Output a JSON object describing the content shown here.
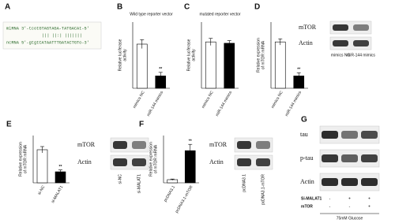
{
  "sequence_panel": {
    "label": "A",
    "lines": [
      "miRNA 3'-tcotGTAGTAGA-TATGACAt-5'",
      "||| ||:| |||||||",
      "ncRNA 5'-gtgtCATAATTTGATACTGTo-3'"
    ]
  },
  "chart_data": [
    {
      "type": "bar",
      "label": "B",
      "title": "Wild type reporter vector",
      "ylabel": [
        "Relative luciferase",
        "activity"
      ],
      "categories": [
        "mimics NC",
        "miR-144 mimics"
      ],
      "values": [
        1.0,
        0.28
      ],
      "errors": [
        0.1,
        0.08
      ],
      "colors": [
        "#ffffff",
        "#000000"
      ],
      "ylim": [
        0,
        1.5
      ],
      "annotations": [
        {
          "category": 1,
          "text": "**"
        }
      ]
    },
    {
      "type": "bar",
      "label": "C",
      "title": "mutated reporter vector",
      "ylabel": [
        "Relative luciferase",
        "activity"
      ],
      "categories": [
        "mimics NC",
        "miR-144 mimics"
      ],
      "values": [
        1.05,
        1.02
      ],
      "errors": [
        0.08,
        0.06
      ],
      "colors": [
        "#ffffff",
        "#000000"
      ],
      "ylim": [
        0,
        1.5
      ]
    },
    {
      "type": "bar",
      "label": "D",
      "ylabel": [
        "Relative expression",
        "of mTOR mRNA"
      ],
      "categories": [
        "mimics NC",
        "miR-144 mimics"
      ],
      "values": [
        1.05,
        0.28
      ],
      "errors": [
        0.07,
        0.07
      ],
      "colors": [
        "#ffffff",
        "#000000"
      ],
      "ylim": [
        0,
        1.5
      ],
      "annotations": [
        {
          "category": 1,
          "text": "**"
        }
      ]
    },
    {
      "type": "bar",
      "label": "E",
      "ylabel": [
        "Relative expression",
        "of mTOR mRNA"
      ],
      "categories": [
        "si-NC",
        "si-MALAT1"
      ],
      "values": [
        1.05,
        0.35
      ],
      "errors": [
        0.1,
        0.06
      ],
      "colors": [
        "#ffffff",
        "#000000"
      ],
      "ylim": [
        0,
        1.5
      ],
      "annotations": [
        {
          "category": 1,
          "text": "**"
        }
      ]
    },
    {
      "type": "bar",
      "label": "F",
      "ylabel": [
        "Relative expression",
        "of mTOR mRNA"
      ],
      "categories": [
        "pcDNA3.1",
        "pcDNA3.1-mTOR"
      ],
      "values": [
        1.0,
        10.2
      ],
      "errors": [
        0.2,
        2.0
      ],
      "colors": [
        "#ffffff",
        "#000000"
      ],
      "ylim": [
        0,
        15
      ],
      "annotations": [
        {
          "category": 1,
          "text": "**"
        }
      ]
    }
  ],
  "blots": [
    {
      "rows": [
        "mTOR",
        "Actin"
      ],
      "lanes": [
        "mimics NC",
        "miR-144 mimics"
      ]
    },
    {
      "rows": [
        "mTOR",
        "Actin"
      ],
      "lanes": [
        "si-NC",
        "si-MALAT1"
      ]
    },
    {
      "rows": [
        "mTOR",
        "Actin"
      ],
      "lanes": [
        "pcDNA3.1",
        "pcDNA3.1-mTOR"
      ]
    },
    {
      "label": "G",
      "rows": [
        "tau",
        "p-tau",
        "Actin"
      ],
      "conditions": [
        {
          "name": "Si-MALAT1",
          "signs": [
            "-",
            "+",
            "+"
          ]
        },
        {
          "name": "mTOR",
          "signs": [
            "-",
            "-",
            "+"
          ]
        }
      ],
      "treatment": "75mM Glucose"
    }
  ]
}
